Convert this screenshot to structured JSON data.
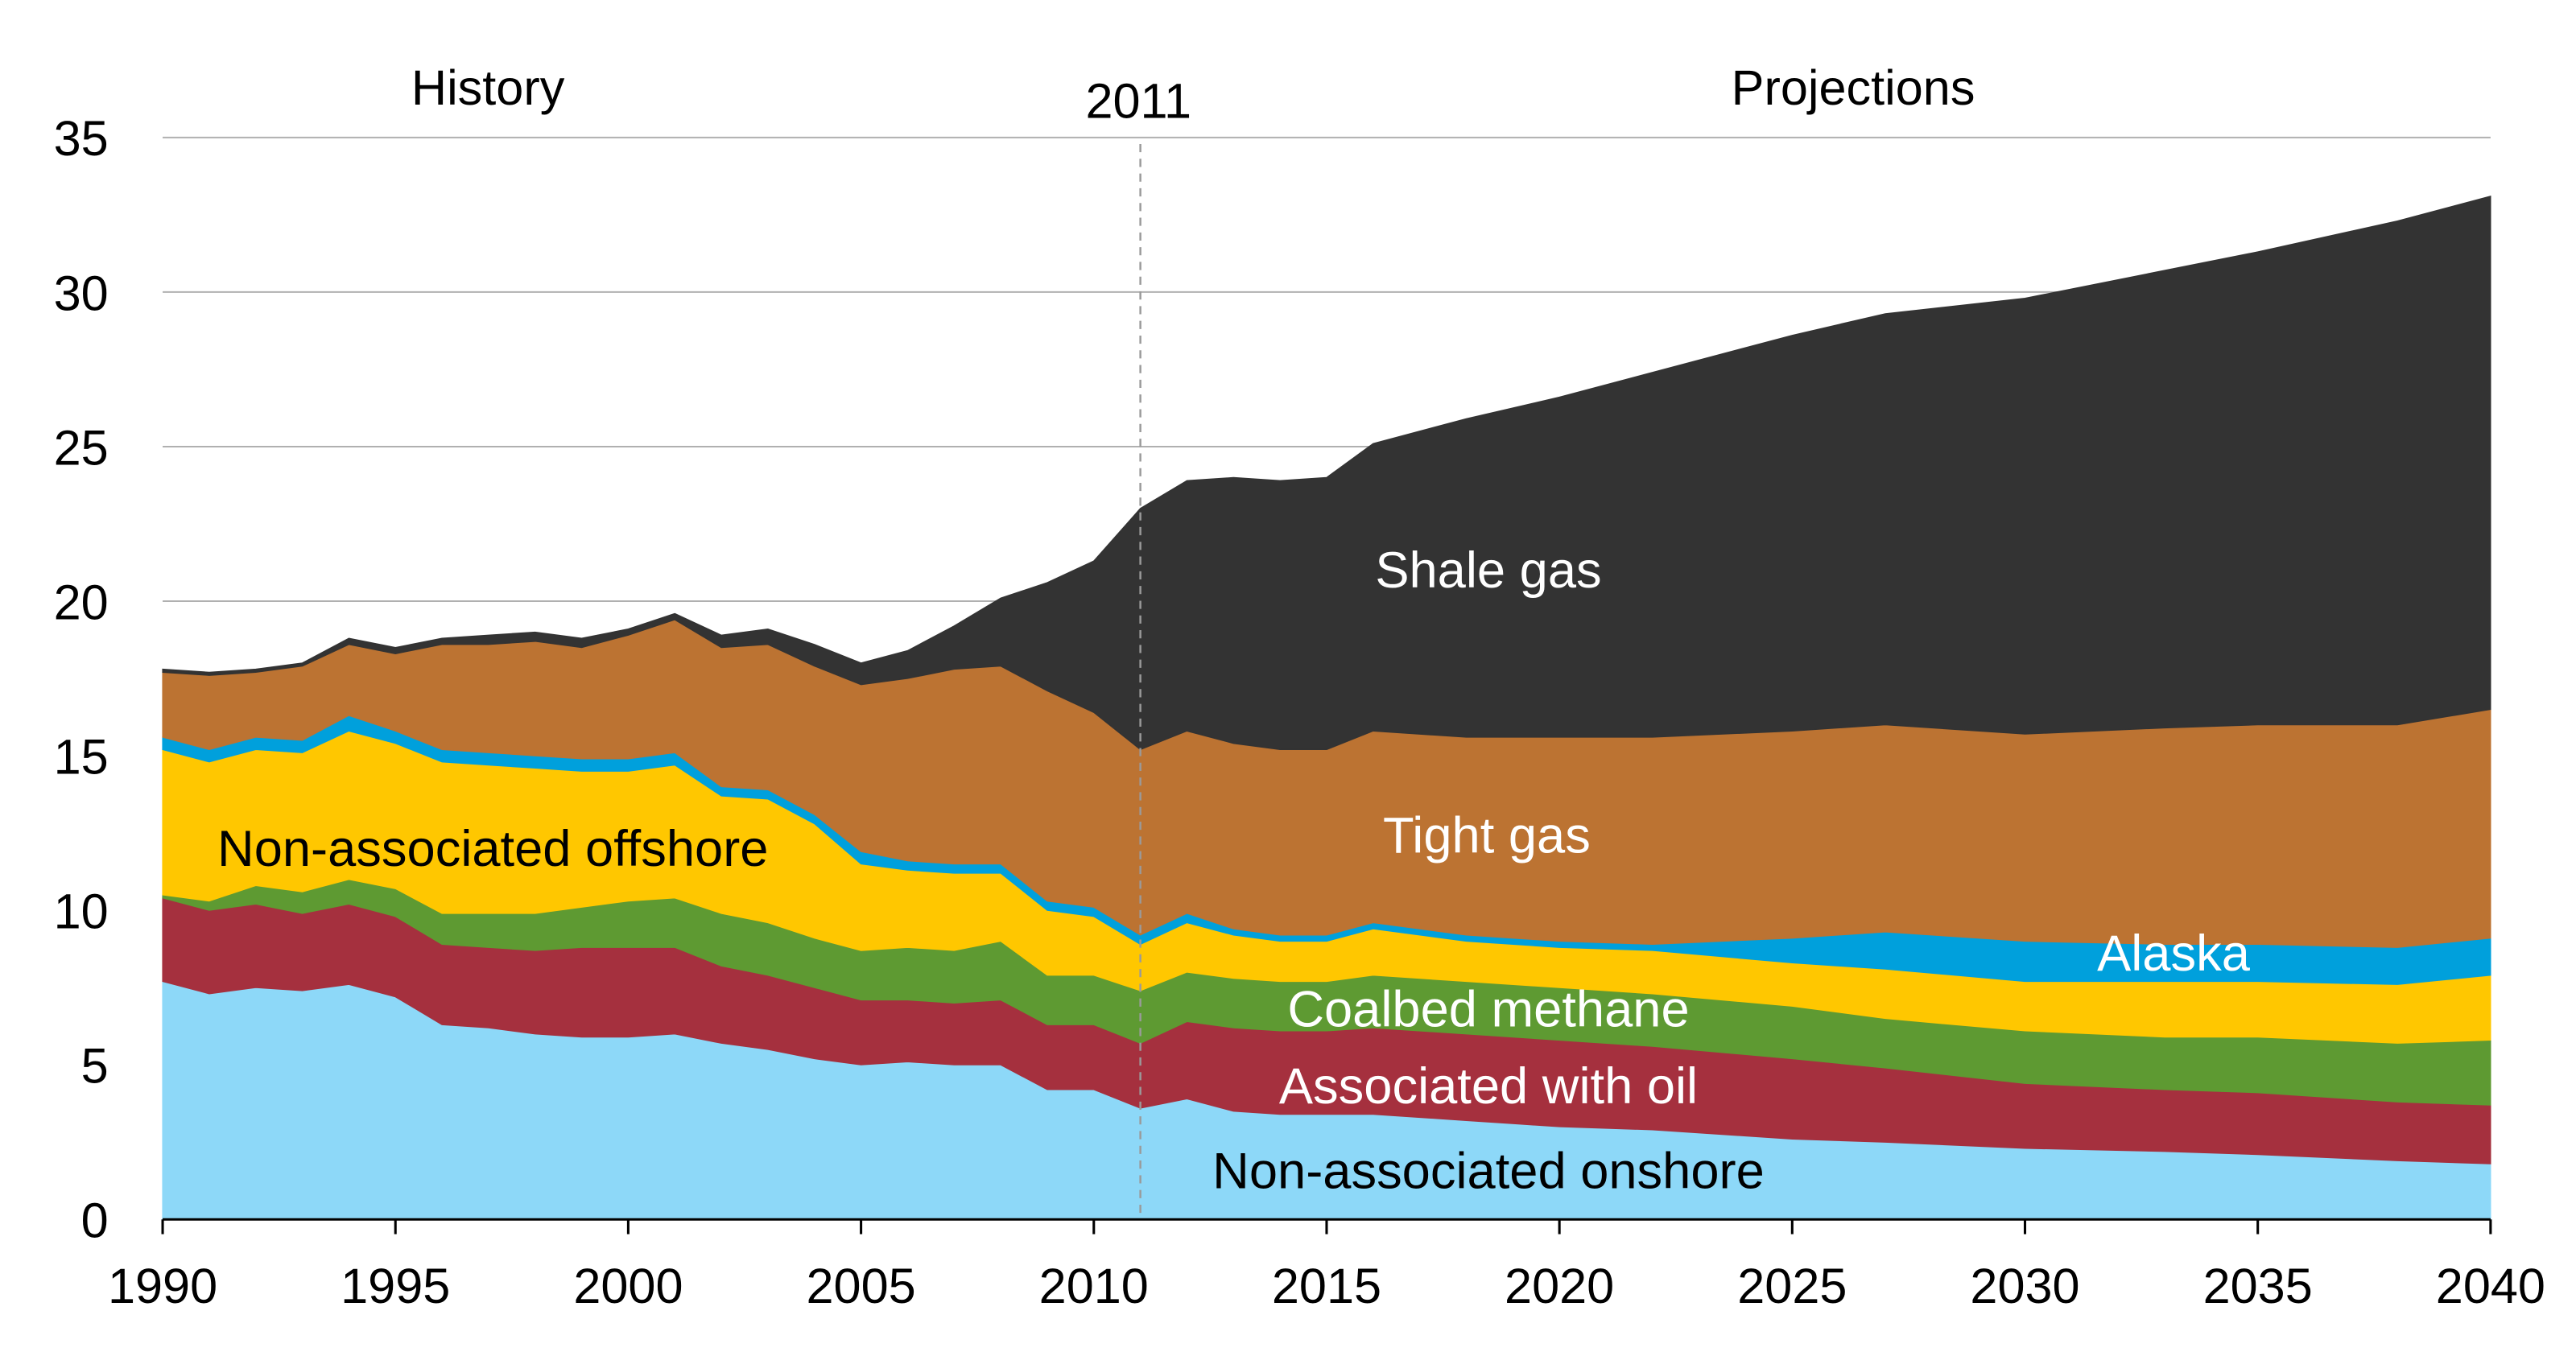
{
  "chart_data": {
    "type": "area",
    "stacked": true,
    "title": "",
    "xlabel": "",
    "ylabel": "",
    "xlim": [
      1990,
      2040
    ],
    "ylim": [
      0,
      35
    ],
    "yticks": [
      0,
      5,
      10,
      15,
      20,
      25,
      30,
      35
    ],
    "xticks": [
      1990,
      1995,
      2000,
      2005,
      2010,
      2015,
      2020,
      2025,
      2030,
      2035,
      2040
    ],
    "grid": "horizontal",
    "legend": "inline labels",
    "annotations": {
      "history": "History",
      "divider_year": "2011",
      "projections": "Projections"
    },
    "divider_x": 2011,
    "x": [
      1990,
      1991,
      1992,
      1993,
      1994,
      1995,
      1996,
      1997,
      1998,
      1999,
      2000,
      2001,
      2002,
      2003,
      2004,
      2005,
      2006,
      2007,
      2008,
      2009,
      2010,
      2011,
      2012,
      2013,
      2014,
      2015,
      2016,
      2018,
      2020,
      2022,
      2025,
      2027,
      2030,
      2033,
      2035,
      2038,
      2040
    ],
    "series": [
      {
        "name": "Non-associated onshore",
        "color": "#8DD8F8",
        "values": [
          7.7,
          7.3,
          7.5,
          7.4,
          7.6,
          7.2,
          6.3,
          6.2,
          6.0,
          5.9,
          5.9,
          6.0,
          5.7,
          5.5,
          5.2,
          5.0,
          5.1,
          5.0,
          5.0,
          4.2,
          4.2,
          3.6,
          3.9,
          3.5,
          3.4,
          3.4,
          3.4,
          3.2,
          3.0,
          2.9,
          2.6,
          2.5,
          2.3,
          2.2,
          2.1,
          1.9,
          1.8
        ]
      },
      {
        "name": "Associated with oil",
        "color": "#A5303E",
        "values": [
          2.7,
          2.7,
          2.7,
          2.5,
          2.6,
          2.6,
          2.6,
          2.6,
          2.7,
          2.9,
          2.9,
          2.8,
          2.5,
          2.4,
          2.3,
          2.1,
          2.0,
          2.0,
          2.1,
          2.1,
          2.1,
          2.1,
          2.5,
          2.7,
          2.7,
          2.7,
          2.8,
          2.8,
          2.8,
          2.7,
          2.6,
          2.4,
          2.1,
          2.0,
          2.0,
          1.9,
          1.9
        ]
      },
      {
        "name": "Coalbed methane",
        "color": "#5E9A32",
        "values": [
          0.1,
          0.3,
          0.6,
          0.7,
          0.8,
          0.9,
          1.0,
          1.1,
          1.2,
          1.3,
          1.5,
          1.6,
          1.7,
          1.7,
          1.6,
          1.6,
          1.7,
          1.7,
          1.9,
          1.6,
          1.6,
          1.7,
          1.6,
          1.6,
          1.6,
          1.6,
          1.7,
          1.7,
          1.7,
          1.7,
          1.7,
          1.6,
          1.7,
          1.7,
          1.8,
          1.9,
          2.1
        ]
      },
      {
        "name": "Non-associated offshore",
        "color": "#FFC700",
        "values": [
          4.7,
          4.5,
          4.4,
          4.5,
          4.8,
          4.7,
          4.9,
          4.8,
          4.7,
          4.4,
          4.2,
          4.3,
          3.8,
          4.0,
          3.7,
          2.8,
          2.5,
          2.5,
          2.2,
          2.1,
          1.9,
          1.5,
          1.6,
          1.4,
          1.3,
          1.3,
          1.5,
          1.3,
          1.3,
          1.4,
          1.4,
          1.6,
          1.6,
          1.8,
          1.8,
          1.9,
          2.1
        ]
      },
      {
        "name": "Alaska",
        "color": "#00A0DC",
        "values": [
          0.4,
          0.4,
          0.4,
          0.4,
          0.5,
          0.4,
          0.4,
          0.4,
          0.4,
          0.4,
          0.4,
          0.4,
          0.3,
          0.3,
          0.3,
          0.4,
          0.3,
          0.3,
          0.3,
          0.3,
          0.3,
          0.3,
          0.3,
          0.2,
          0.2,
          0.2,
          0.2,
          0.2,
          0.2,
          0.2,
          0.8,
          1.2,
          1.3,
          1.2,
          1.2,
          1.2,
          1.2
        ]
      },
      {
        "name": "Tight gas",
        "color": "#BC7332",
        "values": [
          2.1,
          2.4,
          2.1,
          2.4,
          2.3,
          2.5,
          3.4,
          3.5,
          3.7,
          3.6,
          4.0,
          4.3,
          4.5,
          4.7,
          4.8,
          5.4,
          5.9,
          6.3,
          6.4,
          6.8,
          6.3,
          6.0,
          5.9,
          6.0,
          6.0,
          6.0,
          6.2,
          6.4,
          6.6,
          6.7,
          6.7,
          6.7,
          6.7,
          7.0,
          7.1,
          7.2,
          7.4
        ]
      },
      {
        "name": "Shale gas",
        "color": "#333333",
        "values": [
          0.1,
          0.1,
          0.1,
          0.1,
          0.2,
          0.2,
          0.2,
          0.3,
          0.3,
          0.3,
          0.2,
          0.2,
          0.4,
          0.5,
          0.7,
          0.7,
          0.9,
          1.4,
          2.2,
          3.5,
          4.9,
          7.8,
          8.1,
          8.6,
          8.7,
          8.8,
          9.3,
          10.3,
          11.0,
          11.8,
          12.8,
          13.3,
          14.1,
          14.8,
          15.3,
          16.3,
          16.6
        ]
      }
    ]
  }
}
